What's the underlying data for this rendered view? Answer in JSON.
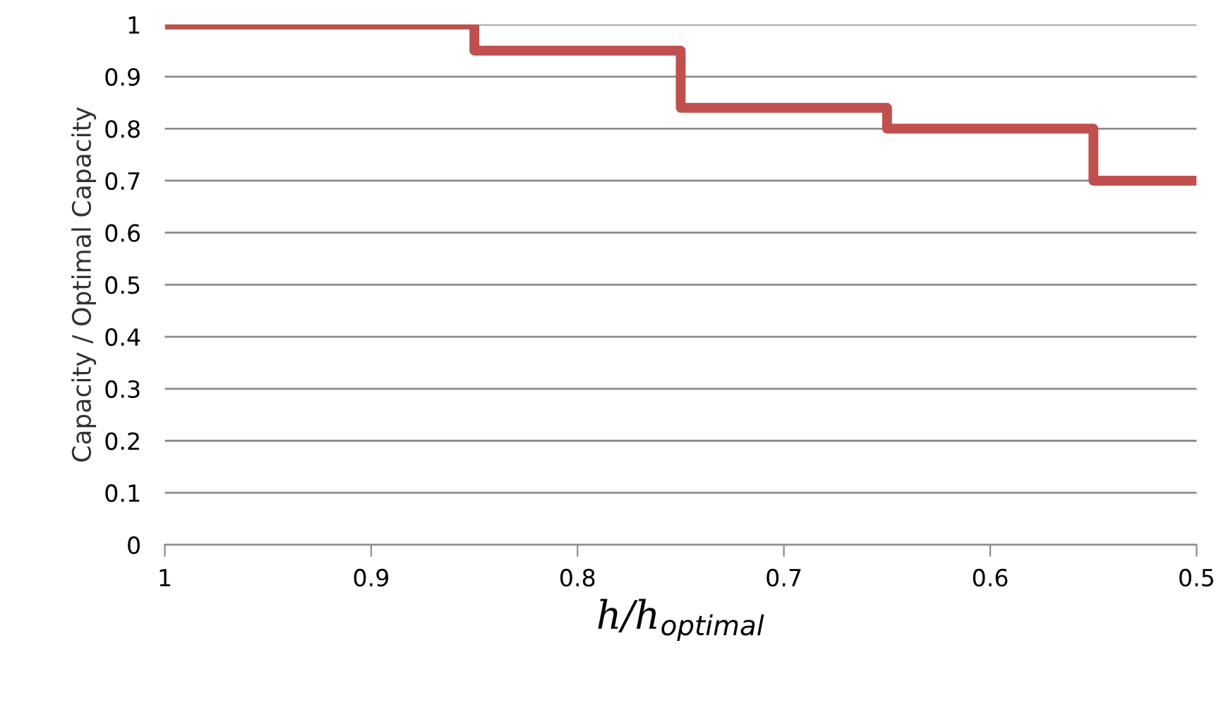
{
  "chart_data": {
    "type": "step",
    "xlabel": "h/h$_{optimal}$",
    "ylabel": "Capacity / Optimal Capacity",
    "x": [
      1,
      0.85,
      0.75,
      0.65,
      0.55,
      0.5
    ],
    "series": [
      {
        "color": "#c0504d",
        "values": [
          1,
          0.95,
          0.84,
          0.8,
          0.7,
          0.7
        ]
      }
    ],
    "xlim": [
      1,
      0.5
    ],
    "xticks": [
      1,
      0.9,
      0.8,
      0.7,
      0.6,
      0.5
    ],
    "ylim": [
      0,
      1
    ],
    "yticks": [
      0,
      0.1,
      0.2,
      0.3,
      0.4,
      0.5,
      0.6,
      0.7,
      0.8,
      0.9,
      1
    ],
    "grid": "y",
    "marker": "none",
    "line_style": "solid"
  }
}
